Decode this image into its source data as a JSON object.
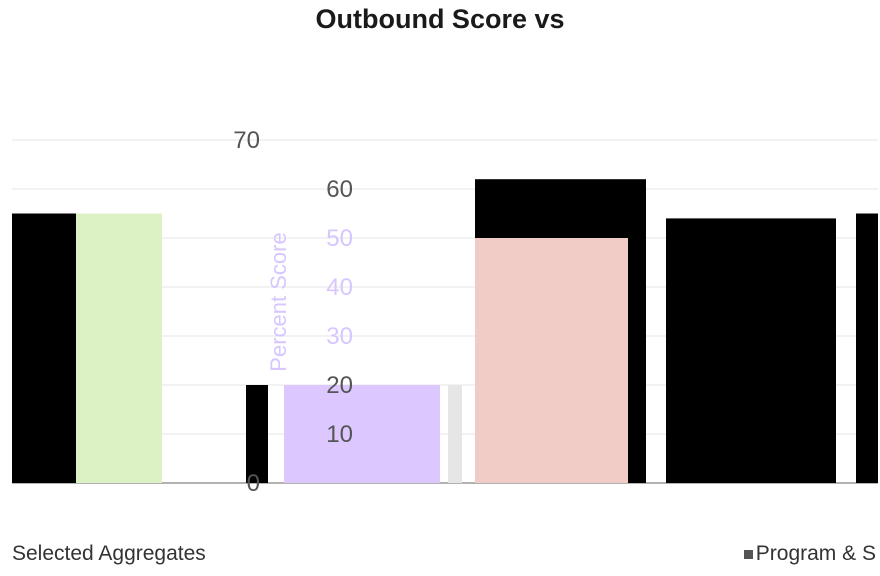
{
  "chart_data": {
    "type": "bar",
    "title": "Outbound Score vs",
    "subtitle": "",
    "ylabel": "Percent Score",
    "xlabel": "",
    "ylim": [
      0,
      70
    ],
    "yticks": [
      0,
      10,
      20,
      30,
      40,
      50,
      60,
      70
    ],
    "grid": true,
    "legend_position": "bottom",
    "bars": [
      {
        "value": 55,
        "color": "#000000"
      },
      {
        "value": 55,
        "color": "#dcf1c4"
      },
      {
        "value": 20,
        "color": "#000000"
      },
      {
        "value": 20,
        "color": "#dcc8ff"
      },
      {
        "value": 20,
        "color": "#e6e6e6"
      },
      {
        "value": 62,
        "color": "#000000"
      },
      {
        "value": 50,
        "color": "#f1cbc6"
      },
      {
        "value": 54,
        "color": "#000000"
      },
      {
        "value": 55,
        "color": "#000000"
      }
    ],
    "legend": [
      "Selected Aggregates",
      "Program & S"
    ]
  }
}
